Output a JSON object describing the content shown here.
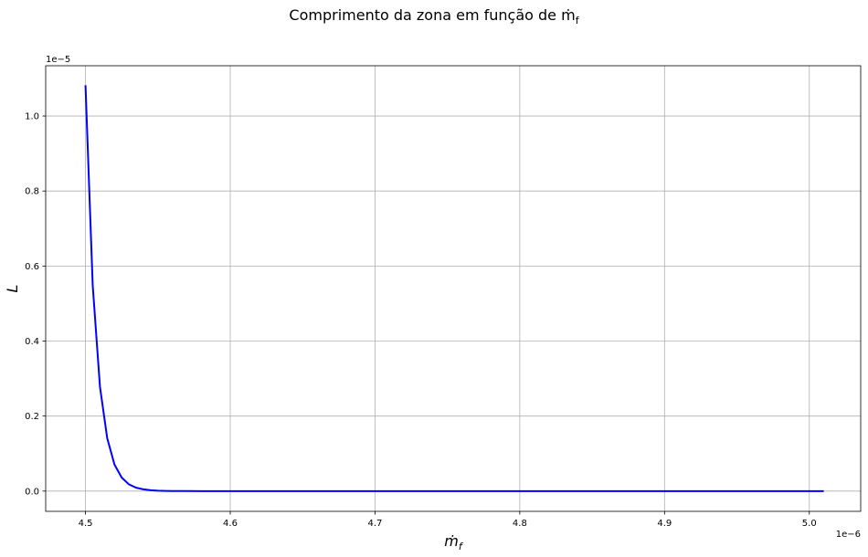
{
  "chart_data": {
    "type": "line",
    "title": "Comprimento da zona em função de ṁ",
    "title_sub": "f",
    "xlabel": "ṁ",
    "xlabel_sub": "f",
    "ylabel": "L",
    "x_multiplier": "1e−6",
    "y_multiplier": "1e−5",
    "xlim": [
      4.4725,
      5.0355
    ],
    "ylim": [
      -0.054,
      1.134
    ],
    "x_ticks": [
      4.5,
      4.6,
      4.7,
      4.8,
      4.9,
      5.0
    ],
    "x_tick_labels": [
      "4.5",
      "4.6",
      "4.7",
      "4.8",
      "4.9",
      "5.0"
    ],
    "y_ticks": [
      0.0,
      0.2,
      0.4,
      0.6,
      0.8,
      1.0
    ],
    "y_tick_labels": [
      "0.0",
      "0.2",
      "0.4",
      "0.6",
      "0.8",
      "1.0"
    ],
    "grid": true,
    "series": [
      {
        "color": "#0000ff",
        "x": [
          4.5,
          4.505,
          4.51,
          4.515,
          4.52,
          4.525,
          4.53,
          4.535,
          4.54,
          4.545,
          4.55,
          4.555,
          4.56,
          4.57,
          4.58,
          4.6,
          4.7,
          4.8,
          4.9,
          5.0,
          5.01
        ],
        "y": [
          1.082,
          0.548,
          0.278,
          0.141,
          0.071,
          0.036,
          0.018,
          0.009,
          0.0047,
          0.0024,
          0.0012,
          0.0006,
          0.0003,
          0.0001,
          0.0,
          0.0,
          0.0,
          0.0,
          0.0,
          0.0,
          0.0
        ]
      }
    ]
  }
}
